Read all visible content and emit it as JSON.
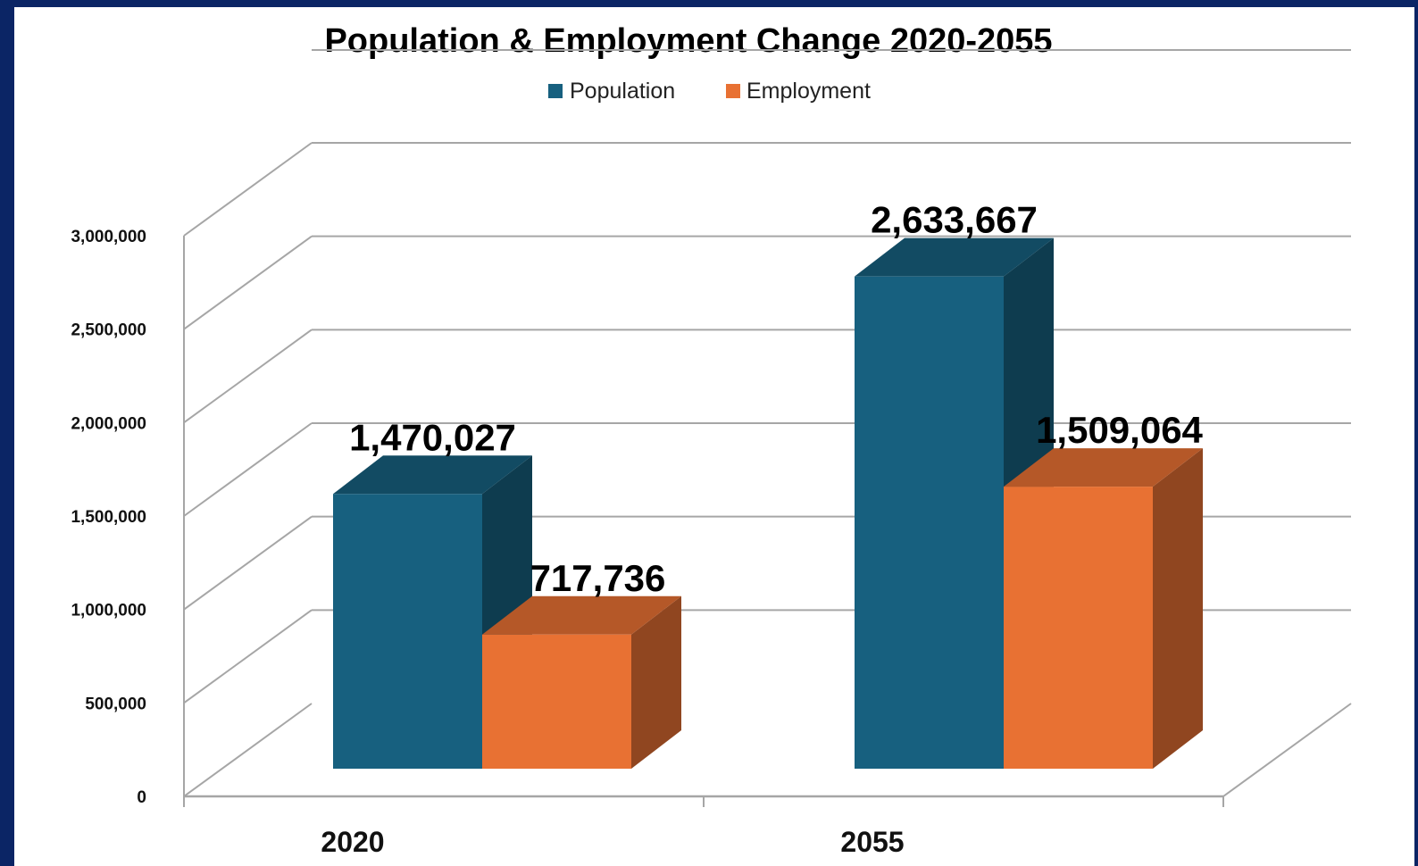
{
  "chart_data": {
    "type": "bar",
    "style": "3d-clustered-column",
    "title": "Population & Employment Change 2020-2055",
    "categories": [
      "2020",
      "2055"
    ],
    "series": [
      {
        "name": "Population",
        "color": "#17607f",
        "values": [
          1470027,
          2633667
        ]
      },
      {
        "name": "Employment",
        "color": "#e87133",
        "values": [
          717736,
          1509064
        ]
      }
    ],
    "data_labels": [
      [
        "1,470,027",
        "2,633,667"
      ],
      [
        "717,736",
        "1,509,064"
      ]
    ],
    "y_ticks": [
      "0",
      "500,000",
      "1,000,000",
      "1,500,000",
      "2,000,000",
      "2,500,000",
      "3,000,000"
    ],
    "ylim": [
      0,
      3000000
    ],
    "xlabel": "",
    "ylabel": "",
    "grid": true,
    "legend_position": "top"
  },
  "colors": {
    "background_border": "#0b2565",
    "plot_background": "#ffffff",
    "gridline": "#a6a6a6"
  }
}
